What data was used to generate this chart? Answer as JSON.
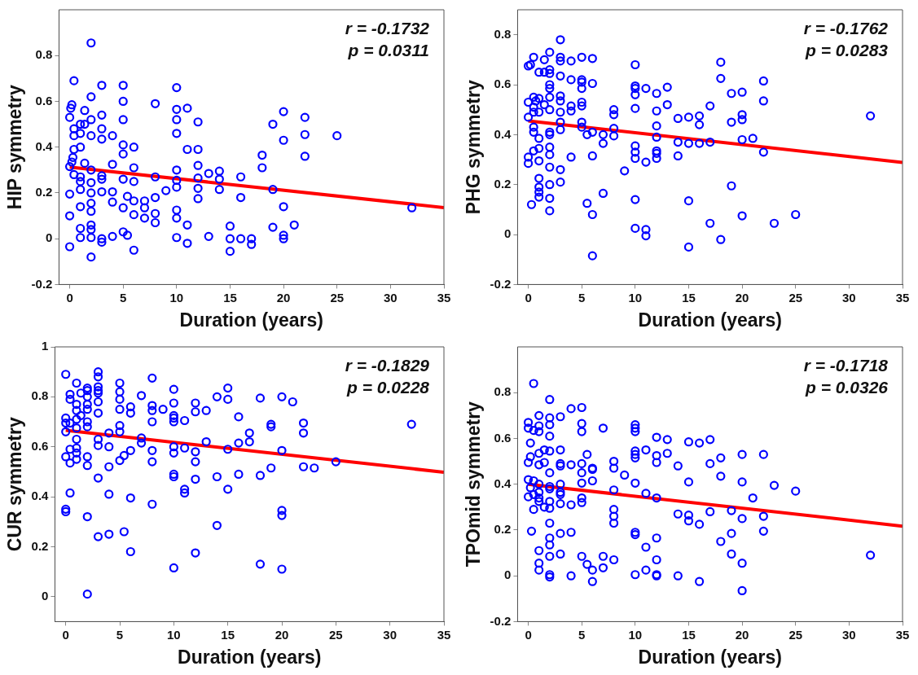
{
  "chart_data": [
    {
      "type": "scatter",
      "xlabel": "Duration (years)",
      "ylabel": "HIP symmetry",
      "xlim": [
        -1,
        35
      ],
      "xticks": [
        0,
        5,
        10,
        15,
        20,
        25,
        30,
        35
      ],
      "ylim": [
        -0.2,
        1
      ],
      "yticks": [
        -0.2,
        0,
        0.2,
        0.4,
        0.6,
        0.8
      ],
      "marker": "circle",
      "grid": false,
      "legend": false,
      "annotations": [
        "r = -0.1732",
        "p = 0.0311"
      ],
      "series": [
        {
          "color": "#0000ff",
          "x": [
            2,
            0.4,
            3,
            5,
            2,
            5,
            8,
            10,
            0.2,
            0.1,
            1.4,
            0,
            10,
            11,
            2,
            5,
            3,
            1,
            1.4,
            0.4,
            0.4,
            1,
            2,
            3,
            3,
            4,
            10,
            12,
            10,
            19,
            20,
            22,
            20,
            22,
            25,
            22,
            18,
            18,
            1,
            0.4,
            5,
            5,
            6,
            11,
            12,
            0.3,
            0.2,
            0,
            1.4,
            4,
            6,
            2,
            0.4,
            1,
            1,
            3,
            3,
            5,
            6,
            8,
            10,
            10,
            12,
            12,
            13,
            14,
            14,
            16,
            2,
            0,
            1,
            2,
            3,
            4,
            5.4,
            6,
            7,
            8,
            9,
            10,
            12,
            12,
            14,
            16,
            19,
            2,
            2,
            1,
            4,
            5,
            7,
            6,
            8,
            10,
            20,
            32,
            0,
            7,
            10,
            8,
            2,
            11,
            15,
            19,
            21,
            1,
            2,
            5,
            5.4,
            4,
            1,
            2,
            3,
            3,
            10,
            13,
            15,
            16,
            17,
            20,
            20,
            0,
            11,
            17,
            6,
            15,
            2
          ],
          "values": [
            0.855,
            0.69,
            0.67,
            0.67,
            0.62,
            0.6,
            0.59,
            0.66,
            0.585,
            0.57,
            0.56,
            0.53,
            0.565,
            0.57,
            0.52,
            0.52,
            0.54,
            0.5,
            0.5,
            0.48,
            0.45,
            0.46,
            0.45,
            0.48,
            0.435,
            0.45,
            0.52,
            0.51,
            0.46,
            0.5,
            0.555,
            0.53,
            0.43,
            0.455,
            0.45,
            0.36,
            0.365,
            0.31,
            0.4,
            0.39,
            0.41,
            0.37,
            0.4,
            0.39,
            0.39,
            0.355,
            0.335,
            0.315,
            0.33,
            0.325,
            0.31,
            0.3,
            0.28,
            0.27,
            0.25,
            0.275,
            0.26,
            0.26,
            0.25,
            0.27,
            0.3,
            0.255,
            0.32,
            0.265,
            0.285,
            0.295,
            0.26,
            0.27,
            0.245,
            0.195,
            0.215,
            0.2,
            0.205,
            0.205,
            0.185,
            0.165,
            0.165,
            0.18,
            0.21,
            0.225,
            0.22,
            0.175,
            0.215,
            0.18,
            0.215,
            0.155,
            0.12,
            0.14,
            0.16,
            0.135,
            0.135,
            0.105,
            0.11,
            0.125,
            0.14,
            0.135,
            0.1,
            0.09,
            0.09,
            0.07,
            0.06,
            0.06,
            0.055,
            0.05,
            0.06,
            0.045,
            0.04,
            0.03,
            0.015,
            0.01,
            0.005,
            0.005,
            0,
            -0.015,
            0.005,
            0.01,
            0,
            0,
            0,
            0.015,
            0,
            -0.035,
            -0.02,
            -0.025,
            -0.05,
            -0.055,
            -0.08
          ]
        },
        {
          "type": "line",
          "marker": "none",
          "color": "#ff0000",
          "x": [
            0,
            35
          ],
          "values": [
            0.313,
            0.136
          ]
        }
      ]
    },
    {
      "type": "scatter",
      "xlabel": "Duration (years)",
      "ylabel": "PHG symmetry",
      "xlim": [
        -1,
        35
      ],
      "xticks": [
        0,
        5,
        10,
        15,
        20,
        25,
        30,
        35
      ],
      "ylim": [
        -0.2,
        0.9
      ],
      "yticks": [
        -0.2,
        0,
        0.2,
        0.4,
        0.6,
        0.8
      ],
      "marker": "circle",
      "grid": false,
      "legend": false,
      "annotations": [
        "r = -0.1762",
        "p = 0.0283"
      ],
      "series": [
        {
          "color": "#0000ff",
          "x": [
            3,
            2,
            0.5,
            0,
            0.2,
            1.5,
            3,
            3,
            4,
            5,
            6,
            10,
            18,
            1,
            1.5,
            2,
            2,
            3,
            4,
            5,
            5,
            6,
            18,
            22,
            2,
            2,
            5,
            10,
            10,
            10,
            11,
            12,
            13,
            19,
            20,
            0.5,
            0,
            1,
            2,
            3,
            3,
            0.7,
            0.5,
            1.5,
            4,
            5,
            5,
            13,
            17,
            22,
            0.5,
            1,
            2,
            3,
            4,
            8,
            8,
            10,
            12,
            0,
            14,
            15,
            16,
            20,
            20,
            32,
            0.5,
            3,
            3,
            5,
            5,
            19,
            16,
            12,
            0.5,
            2,
            2,
            6,
            5.5,
            7,
            8,
            8,
            12,
            1,
            7,
            14,
            15,
            16,
            17,
            20,
            21,
            22,
            2,
            10,
            10,
            12,
            12,
            12,
            0.5,
            1,
            2,
            4,
            6,
            10,
            14,
            0,
            0,
            1,
            11,
            2,
            3,
            9,
            1,
            3,
            2,
            1,
            19,
            1,
            1,
            7,
            2,
            10,
            15,
            5.5,
            0.3,
            2,
            6,
            20,
            25,
            17,
            23,
            10,
            11,
            11,
            18,
            15,
            6
          ],
          "values": [
            0.78,
            0.73,
            0.71,
            0.675,
            0.68,
            0.7,
            0.71,
            0.695,
            0.695,
            0.71,
            0.705,
            0.68,
            0.69,
            0.65,
            0.65,
            0.66,
            0.645,
            0.635,
            0.62,
            0.62,
            0.61,
            0.605,
            0.625,
            0.615,
            0.6,
            0.585,
            0.585,
            0.595,
            0.585,
            0.56,
            0.585,
            0.565,
            0.59,
            0.565,
            0.57,
            0.55,
            0.53,
            0.545,
            0.55,
            0.555,
            0.535,
            0.535,
            0.51,
            0.52,
            0.515,
            0.53,
            0.515,
            0.52,
            0.515,
            0.535,
            0.49,
            0.49,
            0.5,
            0.49,
            0.495,
            0.5,
            0.48,
            0.505,
            0.495,
            0.47,
            0.465,
            0.47,
            0.475,
            0.48,
            0.46,
            0.475,
            0.43,
            0.45,
            0.42,
            0.45,
            0.43,
            0.45,
            0.44,
            0.435,
            0.41,
            0.41,
            0.4,
            0.41,
            0.4,
            0.4,
            0.425,
            0.395,
            0.39,
            0.385,
            0.365,
            0.37,
            0.365,
            0.365,
            0.37,
            0.38,
            0.385,
            0.33,
            0.35,
            0.355,
            0.33,
            0.335,
            0.325,
            0.305,
            0.335,
            0.345,
            0.32,
            0.31,
            0.315,
            0.305,
            0.315,
            0.31,
            0.285,
            0.295,
            0.29,
            0.27,
            0.26,
            0.255,
            0.225,
            0.21,
            0.2,
            0.19,
            0.195,
            0.17,
            0.15,
            0.165,
            0.145,
            0.14,
            0.135,
            0.125,
            0.12,
            0.095,
            0.08,
            0.075,
            0.08,
            0.045,
            0.045,
            0.025,
            0.02,
            -0.005,
            -0.02,
            -0.05,
            -0.085
          ]
        },
        {
          "type": "line",
          "marker": "none",
          "color": "#ff0000",
          "x": [
            0,
            35
          ],
          "values": [
            0.455,
            0.289
          ]
        }
      ]
    },
    {
      "type": "scatter",
      "xlabel": "Duration (years)",
      "ylabel": "CUR symmetry",
      "xlim": [
        -1,
        35
      ],
      "xticks": [
        0,
        5,
        10,
        15,
        20,
        25,
        30,
        35
      ],
      "ylim": [
        -0.1,
        1
      ],
      "yticks": [
        0,
        0.2,
        0.4,
        0.6,
        0.8,
        1
      ],
      "marker": "circle",
      "grid": false,
      "legend": false,
      "annotations": [
        "r = -0.1829",
        "p = 0.0228"
      ],
      "series": [
        {
          "color": "#0000ff",
          "x": [
            0,
            3,
            3,
            1,
            5,
            8,
            2,
            3,
            2,
            3,
            3,
            1.4,
            0.4,
            5,
            10,
            15,
            0.4,
            2,
            5,
            7,
            14,
            15,
            18,
            20,
            21,
            1,
            3,
            2,
            2,
            1,
            6,
            5,
            8,
            8,
            9,
            10,
            12,
            12,
            13,
            1.4,
            3,
            6,
            10,
            10,
            10,
            11,
            16,
            0,
            0,
            1,
            2,
            2,
            8,
            19,
            19,
            22,
            32,
            0.4,
            0,
            1,
            5,
            5,
            4,
            22,
            17,
            17,
            1,
            3,
            3,
            7,
            7,
            13,
            16,
            4,
            6,
            8,
            10,
            10,
            11,
            12,
            15,
            20,
            1,
            0.4,
            1,
            1,
            0,
            2,
            5.4,
            5,
            0.4,
            2,
            8,
            12,
            25,
            4,
            19,
            22,
            23,
            10,
            10,
            14,
            16,
            18,
            3,
            12,
            11,
            11,
            15,
            0.4,
            4,
            6,
            8,
            0,
            0,
            20,
            20,
            2,
            14,
            5.4,
            3,
            4,
            6,
            12,
            18,
            10,
            20,
            2
          ],
          "values": [
            0.89,
            0.9,
            0.88,
            0.855,
            0.855,
            0.875,
            0.835,
            0.84,
            0.825,
            0.825,
            0.815,
            0.815,
            0.81,
            0.82,
            0.83,
            0.835,
            0.79,
            0.8,
            0.79,
            0.805,
            0.8,
            0.79,
            0.795,
            0.8,
            0.78,
            0.77,
            0.78,
            0.77,
            0.75,
            0.745,
            0.76,
            0.75,
            0.765,
            0.745,
            0.75,
            0.775,
            0.775,
            0.74,
            0.745,
            0.725,
            0.735,
            0.735,
            0.725,
            0.715,
            0.7,
            0.705,
            0.72,
            0.715,
            0.695,
            0.71,
            0.7,
            0.68,
            0.7,
            0.69,
            0.68,
            0.695,
            0.69,
            0.695,
            0.66,
            0.675,
            0.685,
            0.66,
            0.655,
            0.655,
            0.655,
            0.62,
            0.63,
            0.63,
            0.605,
            0.635,
            0.615,
            0.62,
            0.615,
            0.6,
            0.585,
            0.585,
            0.6,
            0.575,
            0.595,
            0.58,
            0.59,
            0.585,
            0.595,
            0.59,
            0.575,
            0.55,
            0.56,
            0.56,
            0.565,
            0.545,
            0.535,
            0.525,
            0.54,
            0.54,
            0.54,
            0.52,
            0.515,
            0.52,
            0.515,
            0.49,
            0.48,
            0.48,
            0.49,
            0.485,
            0.475,
            0.47,
            0.43,
            0.415,
            0.43,
            0.415,
            0.41,
            0.395,
            0.37,
            0.35,
            0.34,
            0.345,
            0.325,
            0.32,
            0.285,
            0.26,
            0.24,
            0.25,
            0.18,
            0.175,
            0.13,
            0.115,
            0.11,
            0.01
          ]
        },
        {
          "type": "line",
          "marker": "none",
          "color": "#ff0000",
          "x": [
            0,
            35
          ],
          "values": [
            0.666,
            0.498
          ]
        }
      ]
    },
    {
      "type": "scatter",
      "xlabel": "Duration (years)",
      "ylabel": "TPOmid symmetry",
      "xlim": [
        -1,
        35
      ],
      "xticks": [
        0,
        5,
        10,
        15,
        20,
        25,
        30,
        35
      ],
      "ylim": [
        -0.2,
        1
      ],
      "yticks": [
        -0.2,
        0,
        0.2,
        0.4,
        0.6,
        0.8
      ],
      "marker": "circle",
      "grid": false,
      "legend": false,
      "annotations": [
        "r = -0.1718",
        "p = 0.0326"
      ],
      "series": [
        {
          "color": "#0000ff",
          "x": [
            0.5,
            2,
            4,
            5,
            3,
            1,
            2,
            0,
            1,
            2,
            5,
            0,
            0.5,
            1,
            5,
            7,
            10,
            10,
            10,
            2,
            0.2,
            12,
            13,
            15,
            16,
            17,
            1.5,
            2,
            3,
            1,
            5.5,
            10,
            10,
            10,
            11,
            12,
            13,
            20,
            22,
            18,
            0.2,
            0,
            1.5,
            1,
            3,
            3,
            4,
            5,
            6,
            6,
            8,
            8,
            12,
            14,
            17,
            2,
            5,
            9,
            18,
            6,
            0,
            0.5,
            15,
            20,
            10,
            5,
            3,
            1,
            0.2,
            2,
            2,
            23,
            0,
            0.5,
            1,
            1,
            3,
            3,
            8,
            11,
            25,
            5,
            12,
            21,
            1,
            2,
            5,
            3,
            4,
            1.5,
            2,
            0.5,
            8,
            17,
            19,
            8,
            14,
            15,
            15,
            20,
            22,
            2,
            8,
            16,
            0.3,
            4,
            3,
            10,
            10,
            19,
            22,
            2,
            12,
            18,
            2,
            11,
            1,
            3,
            19,
            32,
            2,
            5,
            7,
            8,
            12,
            1,
            5.5,
            20,
            7,
            1,
            6,
            11,
            2,
            2,
            4,
            10,
            12,
            12,
            14,
            16,
            6,
            20
          ],
          "values": [
            0.84,
            0.77,
            0.73,
            0.735,
            0.695,
            0.7,
            0.69,
            0.67,
            0.655,
            0.66,
            0.665,
            0.645,
            0.635,
            0.63,
            0.63,
            0.645,
            0.66,
            0.645,
            0.63,
            0.61,
            0.58,
            0.605,
            0.595,
            0.585,
            0.58,
            0.595,
            0.55,
            0.545,
            0.55,
            0.535,
            0.53,
            0.545,
            0.53,
            0.515,
            0.55,
            0.525,
            0.535,
            0.53,
            0.53,
            0.515,
            0.52,
            0.495,
            0.495,
            0.485,
            0.49,
            0.48,
            0.485,
            0.49,
            0.465,
            0.47,
            0.5,
            0.47,
            0.495,
            0.48,
            0.49,
            0.45,
            0.45,
            0.44,
            0.435,
            0.415,
            0.42,
            0.415,
            0.41,
            0.41,
            0.405,
            0.405,
            0.4,
            0.4,
            0.385,
            0.39,
            0.38,
            0.395,
            0.345,
            0.355,
            0.365,
            0.34,
            0.365,
            0.355,
            0.375,
            0.36,
            0.37,
            0.34,
            0.34,
            0.34,
            0.325,
            0.325,
            0.32,
            0.315,
            0.31,
            0.3,
            0.295,
            0.29,
            0.29,
            0.28,
            0.285,
            0.26,
            0.27,
            0.265,
            0.24,
            0.25,
            0.26,
            0.23,
            0.23,
            0.225,
            0.195,
            0.19,
            0.185,
            0.19,
            0.18,
            0.185,
            0.195,
            0.165,
            0.165,
            0.15,
            0.135,
            0.125,
            0.11,
            0.095,
            0.095,
            0.09,
            0.085,
            0.085,
            0.085,
            0.07,
            0.07,
            0.055,
            0.05,
            0.055,
            0.035,
            0.025,
            0.025,
            0.025,
            0.005,
            -0.005,
            0,
            0.005,
            0.005,
            0,
            0,
            -0.025,
            -0.025,
            -0.065
          ]
        },
        {
          "type": "line",
          "marker": "none",
          "color": "#ff0000",
          "x": [
            0,
            35
          ],
          "values": [
            0.4,
            0.217
          ]
        }
      ]
    }
  ]
}
